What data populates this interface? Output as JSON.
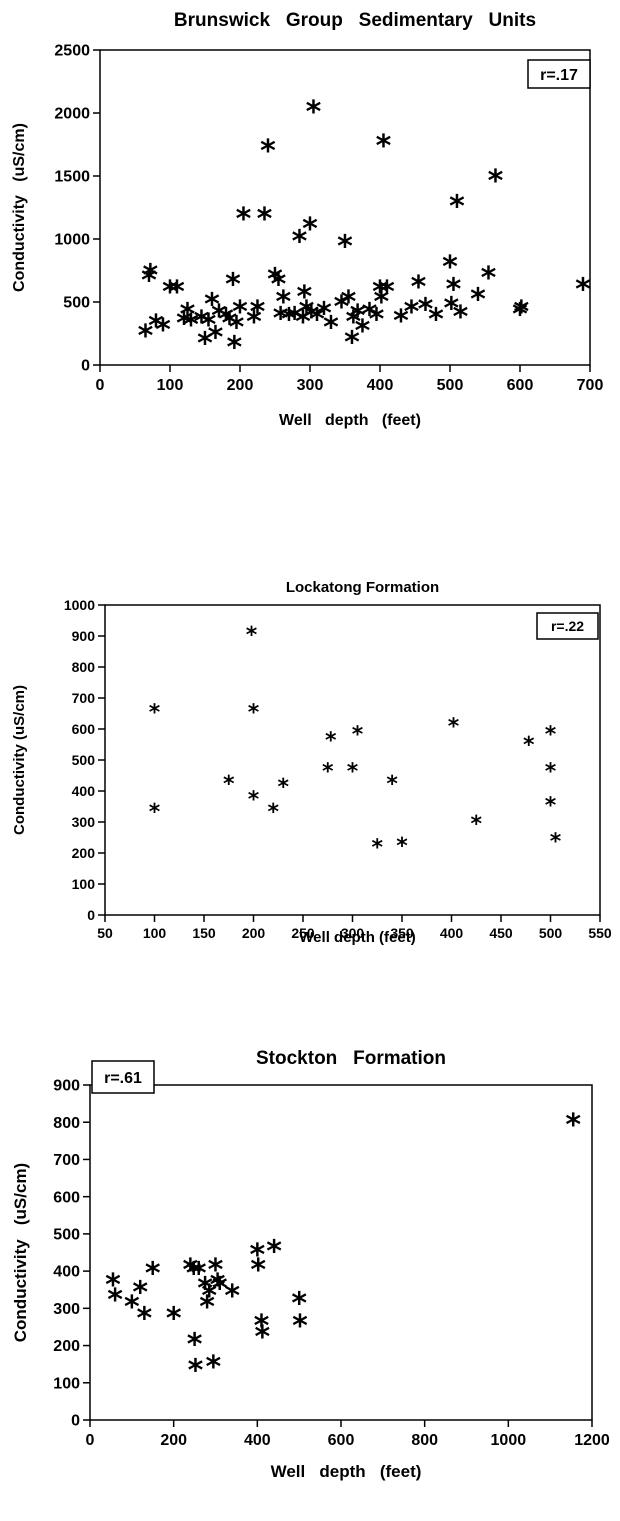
{
  "chart_data": [
    {
      "type": "scatter",
      "title": "Brunswick   Group   Sedimentary   Units",
      "xlabel": "Well   depth   (feet)",
      "ylabel": "Conductivity   (uS/cm)",
      "annotation": "r=.17",
      "annotation_position": "top-right",
      "xlim": [
        0,
        700
      ],
      "ylim": [
        0,
        2500
      ],
      "xticks": [
        0,
        100,
        200,
        300,
        400,
        500,
        600,
        700
      ],
      "yticks": [
        0,
        500,
        1000,
        1500,
        2000,
        2500
      ],
      "marker": "*",
      "grid": false,
      "points": [
        [
          65,
          250
        ],
        [
          70,
          690
        ],
        [
          72,
          730
        ],
        [
          80,
          330
        ],
        [
          90,
          300
        ],
        [
          100,
          600
        ],
        [
          110,
          600
        ],
        [
          120,
          350
        ],
        [
          125,
          420
        ],
        [
          130,
          340
        ],
        [
          145,
          360
        ],
        [
          150,
          190
        ],
        [
          155,
          340
        ],
        [
          160,
          500
        ],
        [
          165,
          240
        ],
        [
          170,
          410
        ],
        [
          180,
          380
        ],
        [
          185,
          350
        ],
        [
          190,
          660
        ],
        [
          192,
          160
        ],
        [
          195,
          320
        ],
        [
          200,
          440
        ],
        [
          205,
          1180
        ],
        [
          220,
          360
        ],
        [
          225,
          440
        ],
        [
          235,
          1180
        ],
        [
          240,
          1720
        ],
        [
          250,
          700
        ],
        [
          255,
          660
        ],
        [
          258,
          390
        ],
        [
          262,
          520
        ],
        [
          270,
          380
        ],
        [
          278,
          390
        ],
        [
          285,
          1000
        ],
        [
          290,
          360
        ],
        [
          292,
          560
        ],
        [
          295,
          440
        ],
        [
          300,
          1100
        ],
        [
          302,
          400
        ],
        [
          305,
          2030
        ],
        [
          310,
          380
        ],
        [
          320,
          430
        ],
        [
          330,
          320
        ],
        [
          345,
          480
        ],
        [
          350,
          960
        ],
        [
          355,
          520
        ],
        [
          360,
          200
        ],
        [
          362,
          360
        ],
        [
          368,
          410
        ],
        [
          375,
          290
        ],
        [
          385,
          420
        ],
        [
          395,
          380
        ],
        [
          400,
          600
        ],
        [
          402,
          520
        ],
        [
          405,
          1760
        ],
        [
          410,
          600
        ],
        [
          430,
          370
        ],
        [
          445,
          440
        ],
        [
          455,
          640
        ],
        [
          465,
          460
        ],
        [
          480,
          380
        ],
        [
          500,
          800
        ],
        [
          502,
          470
        ],
        [
          505,
          620
        ],
        [
          510,
          1280
        ],
        [
          515,
          400
        ],
        [
          540,
          540
        ],
        [
          555,
          710
        ],
        [
          565,
          1480
        ],
        [
          600,
          420
        ],
        [
          602,
          440
        ],
        [
          690,
          620
        ]
      ]
    },
    {
      "type": "scatter",
      "title": "Lockatong Formation",
      "xlabel": "Well depth (feet)",
      "ylabel": "Conductivity (uS/cm)",
      "annotation": "r=.22",
      "annotation_position": "top-right",
      "xlim": [
        50,
        550
      ],
      "ylim": [
        0,
        1000
      ],
      "xticks": [
        50,
        100,
        150,
        200,
        250,
        300,
        350,
        400,
        450,
        500,
        550
      ],
      "yticks": [
        0,
        100,
        200,
        300,
        400,
        500,
        600,
        700,
        800,
        900,
        1000
      ],
      "marker": "*",
      "grid": false,
      "points": [
        [
          100,
          660
        ],
        [
          100,
          340
        ],
        [
          175,
          430
        ],
        [
          198,
          910
        ],
        [
          200,
          660
        ],
        [
          200,
          380
        ],
        [
          220,
          340
        ],
        [
          230,
          420
        ],
        [
          275,
          470
        ],
        [
          278,
          570
        ],
        [
          300,
          470
        ],
        [
          305,
          590
        ],
        [
          325,
          225
        ],
        [
          340,
          430
        ],
        [
          350,
          230
        ],
        [
          402,
          615
        ],
        [
          425,
          300
        ],
        [
          478,
          555
        ],
        [
          500,
          590
        ],
        [
          500,
          470
        ],
        [
          500,
          360
        ],
        [
          505,
          245
        ]
      ]
    },
    {
      "type": "scatter",
      "title": "Stockton   Formation",
      "xlabel": "Well   depth   (feet)",
      "ylabel": "Conductivity   (uS/cm)",
      "annotation": "r=.61",
      "annotation_position": "top-left",
      "xlim": [
        0,
        1200
      ],
      "ylim": [
        0,
        900
      ],
      "xticks": [
        0,
        200,
        400,
        600,
        800,
        1000,
        1200
      ],
      "yticks": [
        0,
        100,
        200,
        300,
        400,
        500,
        600,
        700,
        800,
        900
      ],
      "marker": "*",
      "grid": false,
      "points": [
        [
          55,
          370
        ],
        [
          60,
          330
        ],
        [
          100,
          310
        ],
        [
          120,
          350
        ],
        [
          130,
          280
        ],
        [
          150,
          400
        ],
        [
          200,
          280
        ],
        [
          240,
          410
        ],
        [
          248,
          400
        ],
        [
          250,
          210
        ],
        [
          252,
          140
        ],
        [
          260,
          400
        ],
        [
          275,
          360
        ],
        [
          280,
          310
        ],
        [
          285,
          340
        ],
        [
          295,
          150
        ],
        [
          300,
          410
        ],
        [
          305,
          370
        ],
        [
          310,
          360
        ],
        [
          340,
          340
        ],
        [
          400,
          450
        ],
        [
          402,
          410
        ],
        [
          410,
          260
        ],
        [
          412,
          230
        ],
        [
          440,
          460
        ],
        [
          500,
          320
        ],
        [
          502,
          260
        ],
        [
          1155,
          800
        ]
      ]
    }
  ]
}
